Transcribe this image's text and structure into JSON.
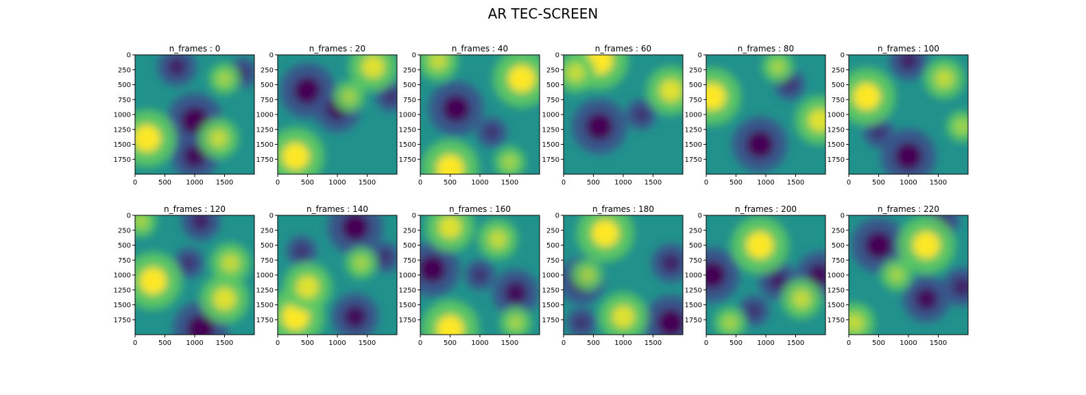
{
  "figure": {
    "suptitle": "AR TEC-SCREEN"
  },
  "chart_data": {
    "type": "heatmap",
    "colormap": "viridis",
    "colors": [
      "#440154",
      "#3b528b",
      "#21918c",
      "#5ec962",
      "#fde725"
    ],
    "xlim": [
      0,
      2000
    ],
    "ylim": [
      2000,
      0
    ],
    "xticks": [
      0,
      500,
      1000,
      1500
    ],
    "yticks": [
      0,
      250,
      500,
      750,
      1000,
      1250,
      1500,
      1750
    ],
    "panels": [
      {
        "title": "n_frames : 0",
        "peaks": [
          [
            200,
            1400,
            1.0
          ],
          [
            1400,
            1400,
            0.6
          ],
          [
            1500,
            400,
            0.4
          ]
        ],
        "troughs": [
          [
            1000,
            1100,
            1.0
          ],
          [
            1000,
            1700,
            0.8
          ],
          [
            700,
            200,
            0.6
          ],
          [
            1800,
            300,
            0.4
          ]
        ]
      },
      {
        "title": "n_frames : 20",
        "peaks": [
          [
            300,
            1700,
            1.0
          ],
          [
            1600,
            200,
            0.8
          ],
          [
            1200,
            700,
            0.4
          ]
        ],
        "troughs": [
          [
            500,
            600,
            1.0
          ],
          [
            1000,
            900,
            0.8
          ],
          [
            1900,
            700,
            0.4
          ]
        ]
      },
      {
        "title": "n_frames : 40",
        "peaks": [
          [
            1700,
            400,
            1.0
          ],
          [
            500,
            1900,
            1.0
          ],
          [
            300,
            100,
            0.6
          ],
          [
            1500,
            1800,
            0.4
          ]
        ],
        "troughs": [
          [
            600,
            900,
            1.0
          ],
          [
            1200,
            1300,
            0.4
          ]
        ]
      },
      {
        "title": "n_frames : 60",
        "peaks": [
          [
            600,
            100,
            1.0
          ],
          [
            1800,
            600,
            0.8
          ],
          [
            200,
            300,
            0.6
          ]
        ],
        "troughs": [
          [
            600,
            1200,
            1.0
          ],
          [
            1300,
            1000,
            0.4
          ]
        ]
      },
      {
        "title": "n_frames : 80",
        "peaks": [
          [
            100,
            700,
            1.0
          ],
          [
            1900,
            1100,
            0.8
          ],
          [
            1200,
            200,
            0.4
          ]
        ],
        "troughs": [
          [
            900,
            1500,
            1.0
          ],
          [
            1400,
            500,
            0.4
          ]
        ]
      },
      {
        "title": "n_frames : 100",
        "peaks": [
          [
            300,
            700,
            1.0
          ],
          [
            1600,
            400,
            0.6
          ],
          [
            1900,
            1200,
            0.4
          ]
        ],
        "troughs": [
          [
            1000,
            1700,
            1.0
          ],
          [
            1000,
            100,
            0.6
          ],
          [
            500,
            1300,
            0.4
          ]
        ]
      },
      {
        "title": "n_frames : 120",
        "peaks": [
          [
            300,
            1100,
            1.0
          ],
          [
            1500,
            1400,
            0.8
          ],
          [
            1600,
            800,
            0.6
          ],
          [
            100,
            100,
            0.4
          ]
        ],
        "troughs": [
          [
            1100,
            1900,
            1.0
          ],
          [
            1100,
            100,
            0.6
          ],
          [
            900,
            800,
            0.4
          ]
        ]
      },
      {
        "title": "n_frames : 140",
        "peaks": [
          [
            300,
            1700,
            1.0
          ],
          [
            500,
            1200,
            0.8
          ],
          [
            1400,
            800,
            0.4
          ]
        ],
        "troughs": [
          [
            1300,
            200,
            1.0
          ],
          [
            1300,
            1700,
            0.8
          ],
          [
            400,
            600,
            0.4
          ],
          [
            1800,
            700,
            0.4
          ]
        ]
      },
      {
        "title": "n_frames : 160",
        "peaks": [
          [
            500,
            1900,
            1.0
          ],
          [
            500,
            200,
            0.8
          ],
          [
            1300,
            400,
            0.6
          ],
          [
            1600,
            1800,
            0.4
          ]
        ],
        "troughs": [
          [
            200,
            900,
            1.0
          ],
          [
            1600,
            1300,
            0.8
          ],
          [
            1000,
            1000,
            0.4
          ]
        ]
      },
      {
        "title": "n_frames : 180",
        "peaks": [
          [
            700,
            300,
            1.0
          ],
          [
            1000,
            1700,
            0.8
          ],
          [
            400,
            1000,
            0.4
          ]
        ],
        "troughs": [
          [
            1800,
            1800,
            1.0
          ],
          [
            300,
            1100,
            0.8
          ],
          [
            1800,
            800,
            0.6
          ],
          [
            300,
            1800,
            0.4
          ]
        ]
      },
      {
        "title": "n_frames : 200",
        "peaks": [
          [
            900,
            500,
            1.0
          ],
          [
            1600,
            1400,
            0.6
          ],
          [
            400,
            1800,
            0.4
          ]
        ],
        "troughs": [
          [
            100,
            1000,
            1.0
          ],
          [
            1900,
            1000,
            0.8
          ],
          [
            1200,
            1100,
            0.6
          ],
          [
            800,
            1600,
            0.4
          ]
        ]
      },
      {
        "title": "n_frames : 220",
        "peaks": [
          [
            1300,
            500,
            1.0
          ],
          [
            100,
            1800,
            0.6
          ],
          [
            800,
            1000,
            0.4
          ]
        ],
        "troughs": [
          [
            500,
            500,
            1.0
          ],
          [
            1300,
            1400,
            0.8
          ],
          [
            1900,
            1200,
            0.6
          ],
          [
            1600,
            100,
            0.4
          ]
        ]
      }
    ]
  }
}
